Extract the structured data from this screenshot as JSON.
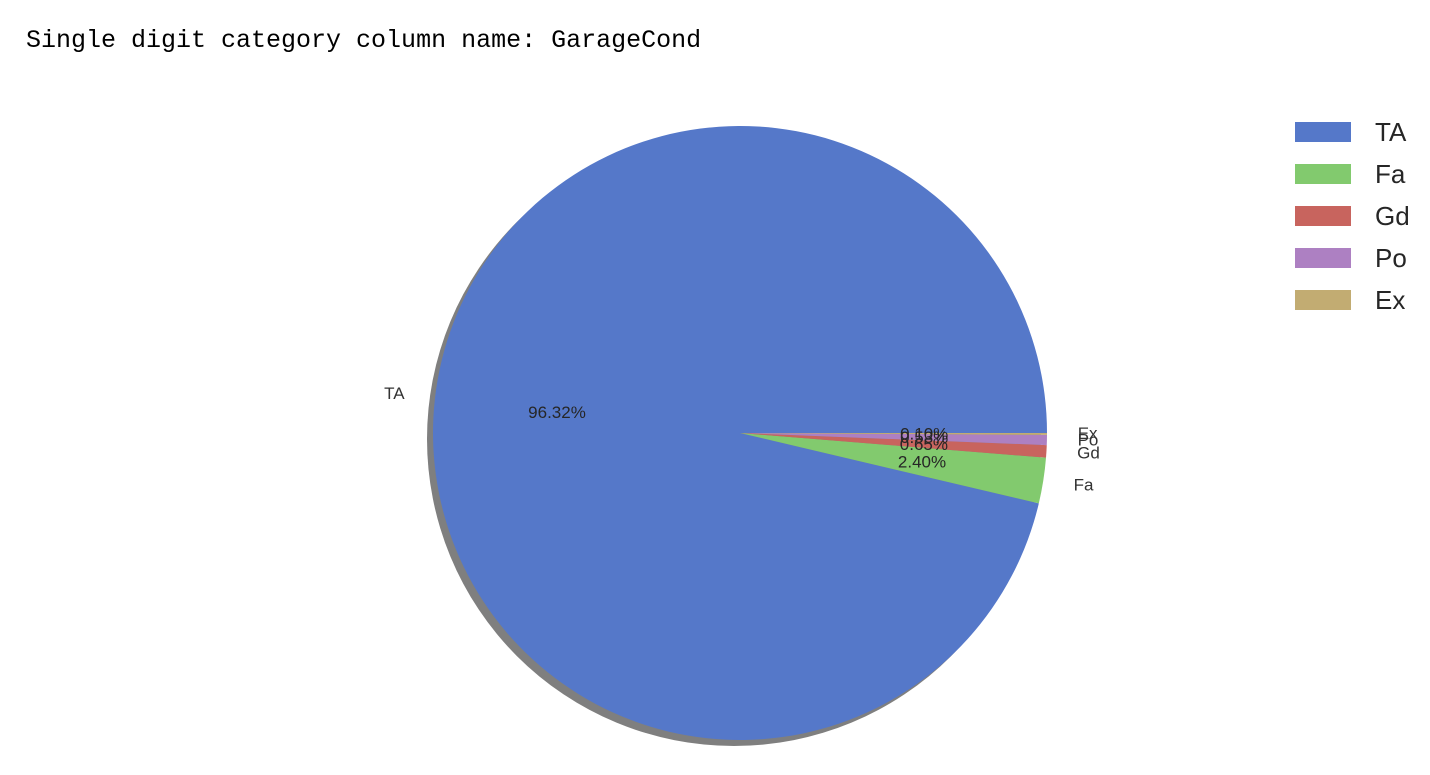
{
  "output": {
    "text": "Single digit category column name: GarageCond"
  },
  "chart_data": {
    "type": "pie",
    "title": "",
    "categories": [
      "TA",
      "Fa",
      "Gd",
      "Po",
      "Ex"
    ],
    "values": [
      96.32,
      2.4,
      0.65,
      0.53,
      0.1
    ],
    "labels": [
      "TA",
      "Fa",
      "Gd",
      "Po",
      "Ex"
    ],
    "pct_labels": [
      "96.32%",
      "2.40%",
      "0.65%",
      "0.53%",
      "0.10%"
    ],
    "colors": [
      "#5578c9",
      "#82ca6e",
      "#c8645e",
      "#ad80c2",
      "#c2ac72"
    ],
    "legend": {
      "position": "top-right",
      "entries": [
        "TA",
        "Fa",
        "Gd",
        "Po",
        "Ex"
      ]
    },
    "shadow": true
  }
}
